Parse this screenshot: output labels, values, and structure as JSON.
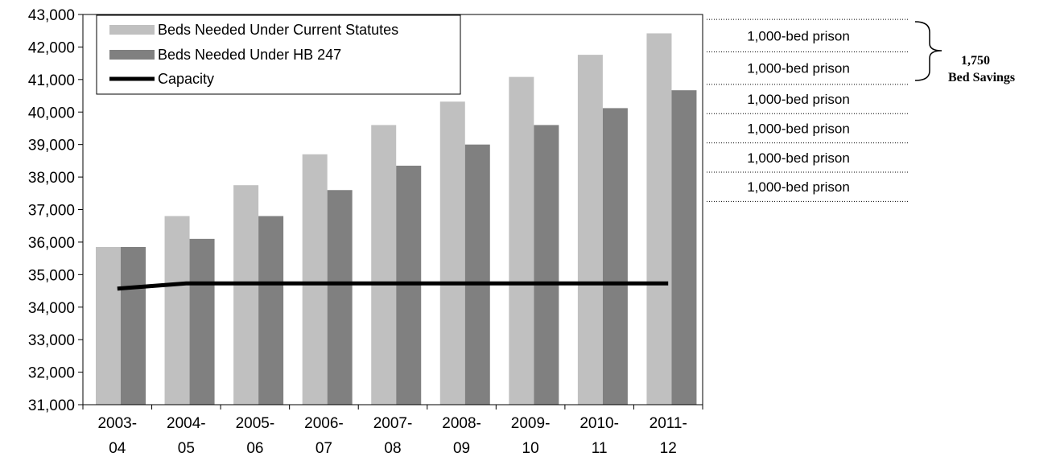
{
  "chart_data": {
    "type": "bar",
    "categories": [
      [
        "2003-",
        "04"
      ],
      [
        "2004-",
        "05"
      ],
      [
        "2005-",
        "06"
      ],
      [
        "2006-",
        "07"
      ],
      [
        "2007-",
        "08"
      ],
      [
        "2008-",
        "09"
      ],
      [
        "2009-",
        "10"
      ],
      [
        "2010-",
        "11"
      ],
      [
        "2011-",
        "12"
      ]
    ],
    "series": [
      {
        "name": "Beds Needed Under Current Statutes",
        "kind": "bar",
        "color": "#c0c0c0",
        "values": [
          35850,
          36800,
          37750,
          38700,
          39600,
          40320,
          41080,
          41760,
          42420
        ]
      },
      {
        "name": "Beds Needed Under HB 247",
        "kind": "bar",
        "color": "#808080",
        "values": [
          35850,
          36100,
          36800,
          37600,
          38350,
          39000,
          39600,
          40120,
          40670
        ]
      },
      {
        "name": "Capacity",
        "kind": "line",
        "color": "#000000",
        "values": [
          34570,
          34730,
          34730,
          34730,
          34730,
          34730,
          34730,
          34730,
          34730
        ]
      }
    ],
    "ylim": [
      31000,
      43000
    ],
    "yticks": [
      "31,000",
      "32,000",
      "33,000",
      "34,000",
      "35,000",
      "36,000",
      "37,000",
      "38,000",
      "39,000",
      "40,000",
      "41,000",
      "42,000",
      "43,000"
    ],
    "grid": false,
    "legend_position": "top-left",
    "annotations": {
      "prison_bands": [
        {
          "label": "1,000-bed prison",
          "top": 42850,
          "bottom": 41850
        },
        {
          "label": "1,000-bed prison",
          "top": 41850,
          "bottom": 40850
        },
        {
          "label": "1,000-bed prison",
          "top": 40850,
          "bottom": 39950
        },
        {
          "label": "1,000-bed prison",
          "top": 39950,
          "bottom": 39050
        },
        {
          "label": "1,000-bed prison",
          "top": 39050,
          "bottom": 38150
        },
        {
          "label": "1,000-bed prison",
          "top": 38150,
          "bottom": 37250
        }
      ],
      "band_floor": 37250,
      "savings": {
        "value": "1,750",
        "label": "Bed Savings"
      }
    }
  }
}
